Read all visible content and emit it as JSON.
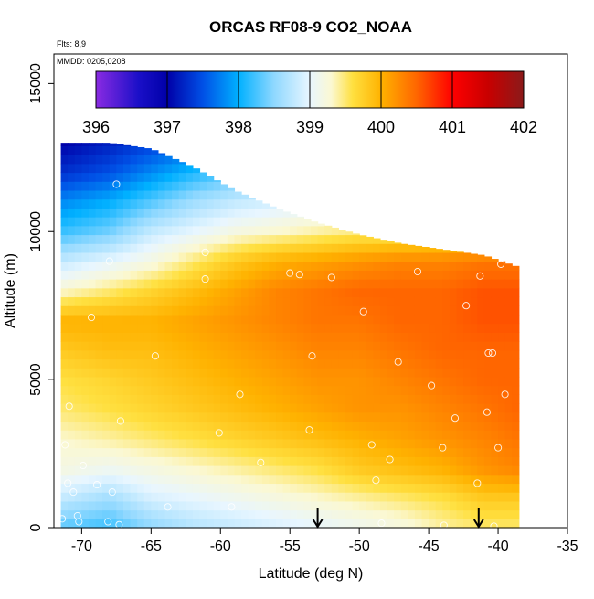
{
  "chart_data": {
    "type": "heatmap",
    "title": "ORCAS RF08-9 CO2_NOAA",
    "annotations": {
      "flights": "Flts: 8,9",
      "dates": "MMDD: 0205,0208"
    },
    "xlabel": "Latitude (deg N)",
    "ylabel": "Altitude (m)",
    "xlim": [
      -72,
      -35
    ],
    "ylim": [
      0,
      16000
    ],
    "x_ticks": [
      -70,
      -65,
      -60,
      -55,
      -50,
      -45,
      -40,
      -35
    ],
    "y_ticks": [
      0,
      5000,
      10000,
      15000
    ],
    "colorbar": {
      "ticks": [
        396,
        397,
        398,
        399,
        400,
        401,
        402
      ],
      "range": [
        396,
        402
      ],
      "stops": [
        {
          "v": 396.0,
          "c": "#8a2be2"
        },
        {
          "v": 396.6,
          "c": "#1a0fc8"
        },
        {
          "v": 397.0,
          "c": "#0000a8"
        },
        {
          "v": 397.5,
          "c": "#0050e6"
        },
        {
          "v": 398.0,
          "c": "#00b0ff"
        },
        {
          "v": 398.5,
          "c": "#8fd8ff"
        },
        {
          "v": 399.0,
          "c": "#e8f6ff"
        },
        {
          "v": 399.3,
          "c": "#fbf8d2"
        },
        {
          "v": 399.6,
          "c": "#ffe040"
        },
        {
          "v": 400.0,
          "c": "#ffb200"
        },
        {
          "v": 400.5,
          "c": "#ff6600"
        },
        {
          "v": 401.0,
          "c": "#ff0000"
        },
        {
          "v": 401.5,
          "c": "#c80000"
        },
        {
          "v": 402.0,
          "c": "#8b1a1a"
        }
      ]
    },
    "field_profile": {
      "lat": [
        -71.5,
        -68,
        -65,
        -62,
        -59,
        -56,
        -53,
        -50,
        -47,
        -44,
        -41,
        -38.5
      ],
      "alt_top": [
        13000,
        13000,
        12800,
        12200,
        11400,
        10800,
        10300,
        9900,
        9600,
        9400,
        9200,
        8800
      ],
      "levels_alt": [
        0,
        1000,
        2000,
        3000,
        4000,
        5000,
        6000,
        7000,
        8000,
        9000,
        10000,
        11000,
        12000,
        13000
      ],
      "values": [
        [
          398.3,
          398.8,
          399.2,
          399.3,
          399.5,
          399.6,
          399.8,
          400.0,
          399.3,
          398.8,
          398.2,
          397.8,
          397.3,
          397.0
        ],
        [
          398.2,
          398.6,
          399.1,
          399.4,
          399.6,
          399.7,
          399.9,
          400.0,
          399.5,
          399.0,
          398.4,
          398.0,
          397.5,
          397.2
        ],
        [
          398.5,
          398.9,
          399.2,
          399.5,
          399.7,
          399.8,
          399.9,
          400.0,
          399.7,
          399.2,
          398.8,
          398.3,
          397.8,
          397.4
        ],
        [
          398.7,
          399.0,
          399.3,
          399.6,
          399.8,
          399.9,
          400.0,
          400.1,
          399.9,
          399.5,
          399.0,
          398.6,
          398.1,
          397.6
        ],
        [
          398.8,
          399.1,
          399.4,
          399.7,
          399.9,
          400.0,
          400.1,
          400.2,
          400.1,
          399.8,
          399.2,
          398.8,
          398.3,
          397.8
        ],
        [
          398.9,
          399.2,
          399.5,
          399.8,
          400.0,
          400.1,
          400.2,
          400.3,
          400.3,
          400.0,
          399.3,
          398.9,
          398.4,
          398.0
        ],
        [
          399.0,
          399.3,
          399.6,
          399.9,
          400.1,
          400.2,
          400.3,
          400.4,
          400.4,
          400.1,
          399.4,
          399.0,
          398.6,
          398.2
        ],
        [
          399.1,
          399.4,
          399.8,
          400.0,
          400.2,
          400.2,
          400.3,
          400.4,
          400.5,
          400.2,
          399.5,
          399.1,
          398.7,
          398.3
        ],
        [
          399.2,
          399.5,
          399.9,
          400.1,
          400.2,
          400.3,
          400.4,
          400.5,
          400.5,
          400.3,
          399.5,
          399.1,
          398.7,
          398.3
        ],
        [
          399.4,
          399.6,
          400.0,
          400.2,
          400.3,
          400.4,
          400.5,
          400.5,
          400.5,
          400.3,
          399.6,
          399.2,
          398.8,
          398.4
        ],
        [
          399.5,
          399.8,
          400.2,
          400.3,
          400.4,
          400.5,
          400.5,
          400.6,
          400.6,
          400.4,
          399.6,
          399.2,
          398.8,
          398.4
        ],
        [
          399.5,
          399.8,
          400.3,
          400.4,
          400.5,
          400.5,
          400.5,
          400.6,
          400.6,
          400.4,
          399.6,
          399.2,
          398.8,
          398.4
        ]
      ]
    },
    "sample_points": [
      [
        -67.5,
        11600
      ],
      [
        -68.0,
        9000
      ],
      [
        -61.1,
        9300
      ],
      [
        -61.1,
        8400
      ],
      [
        -55.0,
        8600
      ],
      [
        -54.3,
        8550
      ],
      [
        -52.0,
        8450
      ],
      [
        -45.8,
        8650
      ],
      [
        -41.3,
        8500
      ],
      [
        -39.8,
        8900
      ],
      [
        -69.3,
        7100
      ],
      [
        -49.7,
        7300
      ],
      [
        -42.3,
        7500
      ],
      [
        -38.0,
        7700
      ],
      [
        -64.7,
        5800
      ],
      [
        -53.4,
        5800
      ],
      [
        -47.2,
        5600
      ],
      [
        -40.7,
        5900
      ],
      [
        -40.4,
        5900
      ],
      [
        -58.6,
        4500
      ],
      [
        -44.8,
        4800
      ],
      [
        -39.5,
        4500
      ],
      [
        -70.9,
        4100
      ],
      [
        -67.2,
        3600
      ],
      [
        -60.1,
        3200
      ],
      [
        -53.6,
        3300
      ],
      [
        -43.1,
        3700
      ],
      [
        -40.8,
        3900
      ],
      [
        -71.2,
        2800
      ],
      [
        -49.1,
        2800
      ],
      [
        -44.0,
        2700
      ],
      [
        -40.0,
        2700
      ],
      [
        -69.9,
        2100
      ],
      [
        -57.1,
        2200
      ],
      [
        -47.8,
        2300
      ],
      [
        -71.0,
        1500
      ],
      [
        -70.6,
        1200
      ],
      [
        -68.9,
        1450
      ],
      [
        -67.8,
        1200
      ],
      [
        -48.8,
        1600
      ],
      [
        -41.5,
        1500
      ],
      [
        -63.8,
        700
      ],
      [
        -59.2,
        700
      ],
      [
        -70.3,
        400
      ],
      [
        -71.4,
        300
      ],
      [
        -70.2,
        200
      ],
      [
        -68.1,
        200
      ],
      [
        -67.3,
        100
      ],
      [
        -48.4,
        150
      ],
      [
        -43.9,
        80
      ],
      [
        -40.3,
        50
      ]
    ],
    "arrows_lat": [
      -53.0,
      -41.4
    ]
  }
}
